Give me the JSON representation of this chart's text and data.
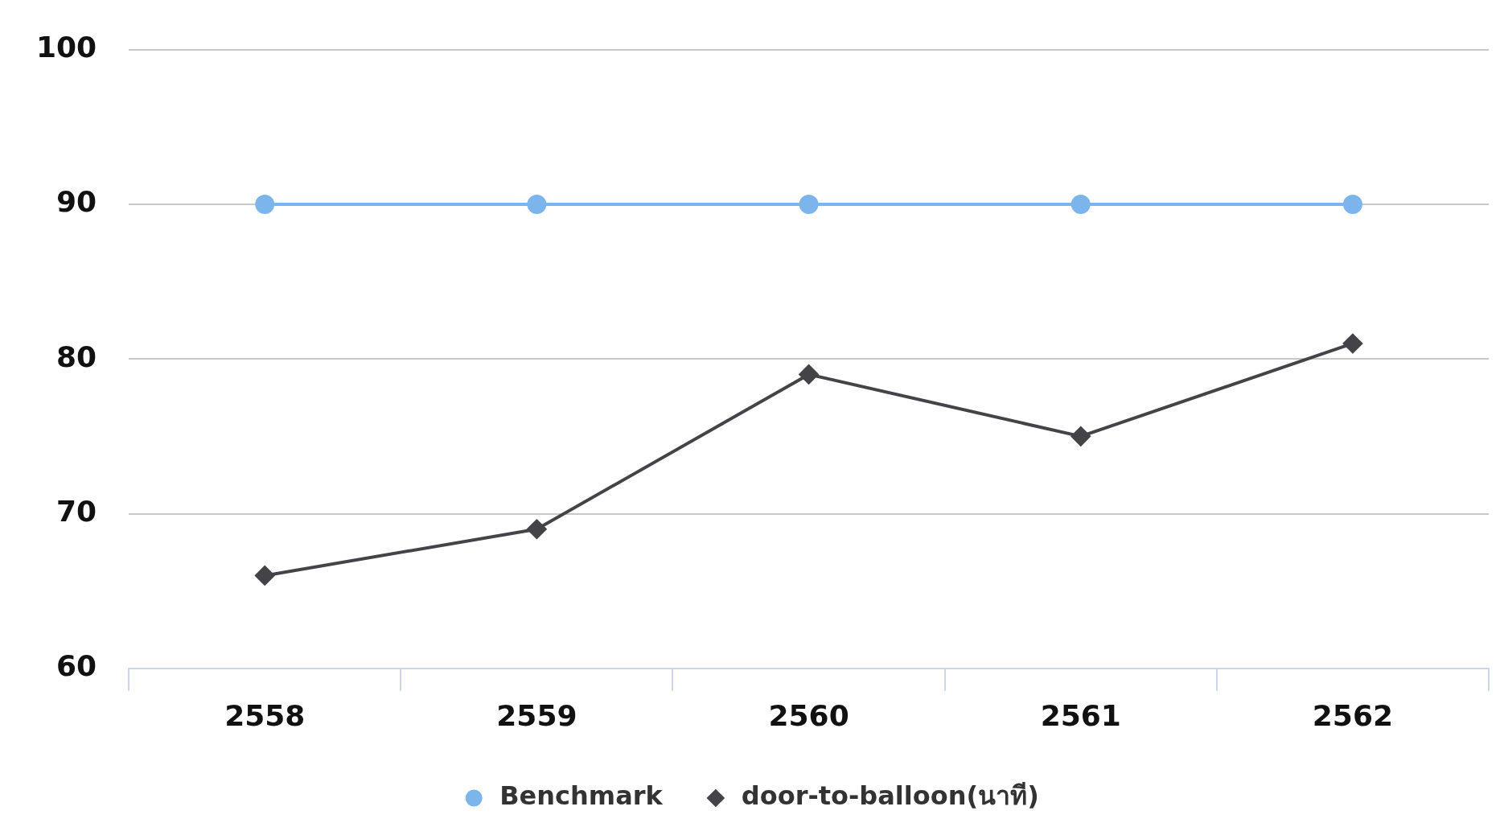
{
  "chart_data": {
    "type": "line",
    "categories": [
      "2558",
      "2559",
      "2560",
      "2561",
      "2562"
    ],
    "series": [
      {
        "name": "Benchmark",
        "color": "#7cb5ec",
        "values": [
          90,
          90,
          90,
          90,
          90
        ],
        "marker": "circle"
      },
      {
        "name": "door-to-balloon(นาที)",
        "color": "#434348",
        "values": [
          66,
          69,
          79,
          75,
          81
        ],
        "marker": "diamond"
      }
    ],
    "ylim": [
      60,
      100
    ],
    "yticks": [
      60,
      70,
      80,
      90,
      100
    ],
    "grid": "y",
    "legend": "bottom"
  }
}
